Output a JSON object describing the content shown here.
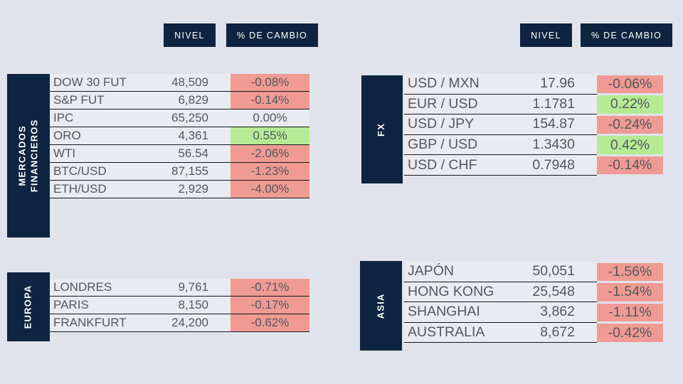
{
  "colors": {
    "navy": "#0e2440",
    "negative_bg": "#ef9a92",
    "positive_bg": "#b5eb94",
    "page_bg": "#e0e3eb",
    "row_bg": "#e9ebf1",
    "text_gray": "#54575e"
  },
  "column_headers": {
    "nivel": "NIVEL",
    "cambio": "% DE CAMBIO"
  },
  "tables": [
    {
      "id": "mercados-financieros",
      "title_lines": [
        "MERCADOS",
        "FINANCIEROS"
      ],
      "rows": [
        {
          "label": "DOW 30 FUT",
          "level": "48,509",
          "change": "-0.08%",
          "direction": "down"
        },
        {
          "label": "S&P FUT",
          "level": "6,829",
          "change": "-0.14%",
          "direction": "down"
        },
        {
          "label": "IPC",
          "level": "65,250",
          "change": "0.00%",
          "direction": "flat"
        },
        {
          "label": "ORO",
          "level": "4,361",
          "change": "0.55%",
          "direction": "up"
        },
        {
          "label": "WTI",
          "level": "56.54",
          "change": "-2.06%",
          "direction": "down"
        },
        {
          "label": "BTC/USD",
          "level": "87,155",
          "change": "-1.23%",
          "direction": "down"
        },
        {
          "label": "ETH/USD",
          "level": "2,929",
          "change": "-4.00%",
          "direction": "down"
        }
      ]
    },
    {
      "id": "fx",
      "title_lines": [
        "FX"
      ],
      "rows": [
        {
          "label": "USD / MXN",
          "level": "17.96",
          "change": "-0.06%",
          "direction": "down"
        },
        {
          "label": "EUR / USD",
          "level": "1.1781",
          "change": "0.22%",
          "direction": "up"
        },
        {
          "label": "USD / JPY",
          "level": "154.87",
          "change": "-0.24%",
          "direction": "down"
        },
        {
          "label": "GBP / USD",
          "level": "1.3430",
          "change": "0.42%",
          "direction": "up"
        },
        {
          "label": "USD / CHF",
          "level": "0.7948",
          "change": "-0.14%",
          "direction": "down"
        }
      ]
    },
    {
      "id": "europa",
      "title_lines": [
        "EUROPA"
      ],
      "rows": [
        {
          "label": "LONDRES",
          "level": "9,761",
          "change": "-0.71%",
          "direction": "down"
        },
        {
          "label": "PARIS",
          "level": "8,150",
          "change": "-0.17%",
          "direction": "down"
        },
        {
          "label": "FRANKFURT",
          "level": "24,200",
          "change": "-0.62%",
          "direction": "down"
        }
      ]
    },
    {
      "id": "asia",
      "title_lines": [
        "ASIA"
      ],
      "rows": [
        {
          "label": "JAPÓN",
          "level": "50,051",
          "change": "-1.56%",
          "direction": "down"
        },
        {
          "label": "HONG KONG",
          "level": "25,548",
          "change": "-1.54%",
          "direction": "down"
        },
        {
          "label": "SHANGHAI",
          "level": "3,862",
          "change": "-1.11%",
          "direction": "down"
        },
        {
          "label": "AUSTRALIA",
          "level": "8,672",
          "change": "-0.42%",
          "direction": "down"
        }
      ]
    }
  ],
  "chart_data": [
    {
      "type": "table",
      "title": "MERCADOS FINANCIEROS",
      "columns": [
        "",
        "NIVEL",
        "% DE CAMBIO"
      ],
      "rows": [
        [
          "DOW 30 FUT",
          48509,
          -0.08
        ],
        [
          "S&P FUT",
          6829,
          -0.14
        ],
        [
          "IPC",
          65250,
          0.0
        ],
        [
          "ORO",
          4361,
          0.55
        ],
        [
          "WTI",
          56.54,
          -2.06
        ],
        [
          "BTC/USD",
          87155,
          -1.23
        ],
        [
          "ETH/USD",
          2929,
          -4.0
        ]
      ]
    },
    {
      "type": "table",
      "title": "FX",
      "columns": [
        "",
        "NIVEL",
        "% DE CAMBIO"
      ],
      "rows": [
        [
          "USD / MXN",
          17.96,
          -0.06
        ],
        [
          "EUR / USD",
          1.1781,
          0.22
        ],
        [
          "USD / JPY",
          154.87,
          -0.24
        ],
        [
          "GBP / USD",
          1.343,
          0.42
        ],
        [
          "USD / CHF",
          0.7948,
          -0.14
        ]
      ]
    },
    {
      "type": "table",
      "title": "EUROPA",
      "columns": [
        "",
        "NIVEL",
        "% DE CAMBIO"
      ],
      "rows": [
        [
          "LONDRES",
          9761,
          -0.71
        ],
        [
          "PARIS",
          8150,
          -0.17
        ],
        [
          "FRANKFURT",
          24200,
          -0.62
        ]
      ]
    },
    {
      "type": "table",
      "title": "ASIA",
      "columns": [
        "",
        "NIVEL",
        "% DE CAMBIO"
      ],
      "rows": [
        [
          "JAPÓN",
          50051,
          -1.56
        ],
        [
          "HONG KONG",
          25548,
          -1.54
        ],
        [
          "SHANGHAI",
          3862,
          -1.11
        ],
        [
          "AUSTRALIA",
          8672,
          -0.42
        ]
      ]
    }
  ]
}
